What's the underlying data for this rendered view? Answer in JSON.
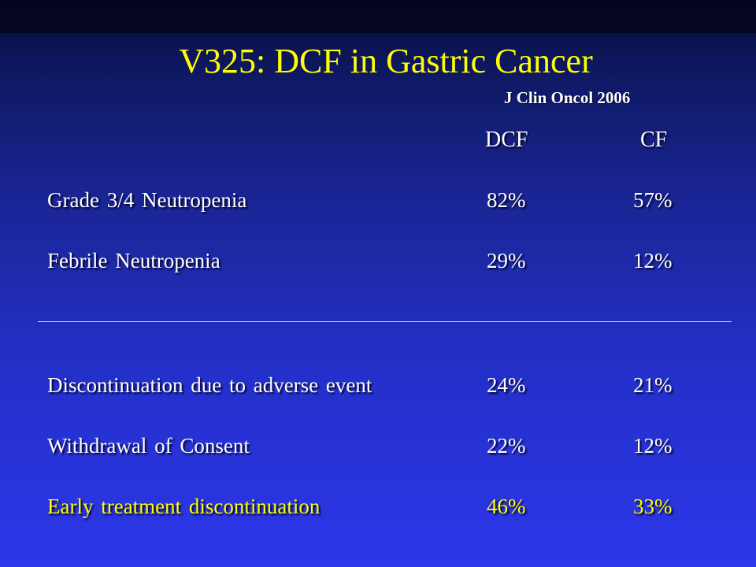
{
  "slide": {
    "title": "V325: DCF in Gastric Cancer",
    "source": "J Clin Oncol 2006",
    "columns": [
      "DCF",
      "CF"
    ],
    "colors": {
      "title": "#ffff00",
      "text": "#ffffff",
      "highlight": "#ffff00",
      "background_top": "#060a35",
      "background_bottom": "#2c37ea"
    },
    "rows": [
      {
        "label": "Grade 3/4 Neutropenia",
        "dcf": "82%",
        "cf": "57%"
      },
      {
        "label": "Febrile Neutropenia",
        "dcf": "29%",
        "cf": "12%"
      },
      {
        "label": "Discontinuation due to adverse event",
        "dcf": "24%",
        "cf": "21%"
      },
      {
        "label": "Withdrawal of Consent",
        "dcf": "22%",
        "cf": "12%"
      },
      {
        "label": "Early treatment discontinuation",
        "dcf": "46%",
        "cf": "33%",
        "highlight": true
      }
    ]
  }
}
